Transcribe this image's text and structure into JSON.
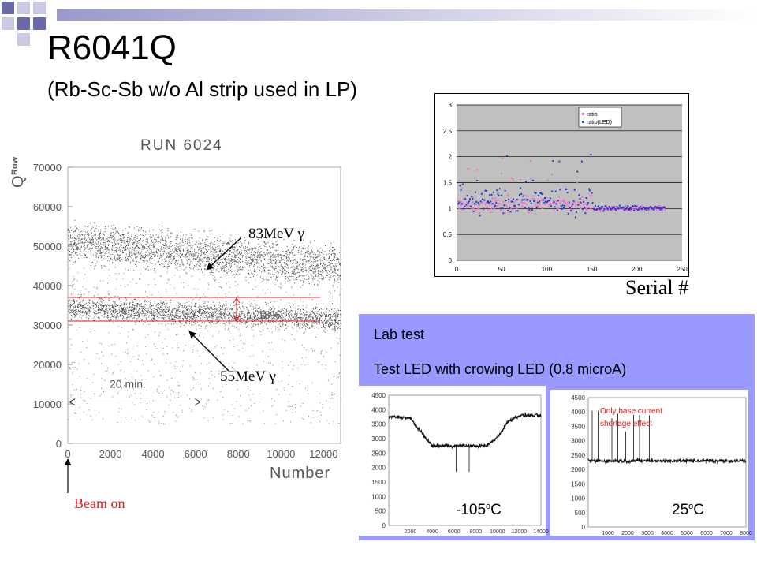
{
  "slide": {
    "title": "R6041Q",
    "subtitle": "(Rb-Sc-Sb w/o Al strip used in LP)",
    "label_83": "83MeV",
    "label_55": "55MeV",
    "gamma_symbol": "γ",
    "beam_on": "Beam on",
    "serial_label": "Serial #",
    "lab_title": "Lab test",
    "lab_desc": "Test LED with crowing LED (0.8 microA)",
    "temp_cold_value": "-105",
    "temp_warm_value": "25",
    "temp_sup": "o",
    "temp_unit": "C",
    "beam_arrow_color": "#1a1a1a",
    "red_color": "#e0191b",
    "panel_color": "#9999ff"
  },
  "chart_data": [
    {
      "type": "scatter",
      "title": "RUN 6024",
      "xlabel": "Number",
      "ylabel": "Q",
      "ylabel_sub": "Row",
      "xlim": [
        0,
        12800
      ],
      "ylim": [
        0,
        70000
      ],
      "xticks": [
        0,
        2000,
        4000,
        6000,
        8000,
        10000,
        12000
      ],
      "yticks": [
        0,
        10000,
        20000,
        30000,
        40000,
        50000,
        60000,
        70000
      ],
      "reference_lines": [
        37000,
        31000
      ],
      "annotation_ratio": "18%",
      "annotation_time": "20 min.",
      "time_span": [
        0,
        6000
      ],
      "bands": [
        {
          "x": [
            0,
            12800
          ],
          "y_center_start": 51000,
          "y_center_end": 45000,
          "spread": 4500
        },
        {
          "x": [
            0,
            12800
          ],
          "y_center_start": 34500,
          "y_center_end": 31500,
          "spread": 2500
        }
      ]
    },
    {
      "type": "scatter",
      "xlim": [
        0,
        250
      ],
      "ylim": [
        0,
        3
      ],
      "xticks": [
        0,
        50,
        100,
        150,
        200,
        250
      ],
      "yticks": [
        0,
        0.5,
        1,
        1.5,
        2,
        2.5,
        3
      ],
      "grid": true,
      "legend_position": "top-right",
      "series": [
        {
          "name": "ratio",
          "color": "#ff66cc",
          "center": 1.1,
          "spread": 0.25
        },
        {
          "name": "ratio(LED)",
          "color": "#2a3cc8",
          "center": 1.2,
          "spread": 0.35
        }
      ],
      "x_range": [
        1,
        230
      ]
    },
    {
      "type": "line",
      "label": "-105oC",
      "xlim": [
        0,
        14000
      ],
      "ylim": [
        0,
        4500
      ],
      "xticks": [
        2000,
        4000,
        6000,
        8000,
        10000,
        12000,
        14000
      ],
      "yticks": [
        0,
        500,
        1000,
        1500,
        2000,
        2500,
        3000,
        3500,
        4000,
        4500
      ],
      "series": [
        {
          "x": [
            0,
            1000,
            2000,
            2800,
            4000,
            6000,
            8000,
            9000,
            10000,
            11000,
            12000,
            14000
          ],
          "y": [
            3750,
            3750,
            3700,
            3300,
            2750,
            2750,
            2750,
            2750,
            3050,
            3600,
            3800,
            3800
          ]
        }
      ]
    },
    {
      "type": "line",
      "label": "25oC",
      "annotation": "Only base current shortage effect",
      "xlim": [
        0,
        8000
      ],
      "ylim": [
        0,
        4500
      ],
      "xticks": [
        1000,
        2000,
        3000,
        4000,
        5000,
        6000,
        7000,
        8000
      ],
      "yticks": [
        0,
        500,
        1000,
        1500,
        2000,
        2500,
        3000,
        3500,
        4000,
        4500
      ],
      "series": [
        {
          "x": [
            0,
            1000,
            2000,
            3000,
            4000,
            5000,
            6000,
            7000,
            8000
          ],
          "y": [
            2300,
            2300,
            2300,
            2300,
            2300,
            2300,
            2300,
            2300,
            2300
          ]
        }
      ],
      "spikes": [
        200,
        500,
        700,
        1200,
        1500,
        1900,
        2300,
        2600,
        3100
      ]
    }
  ]
}
